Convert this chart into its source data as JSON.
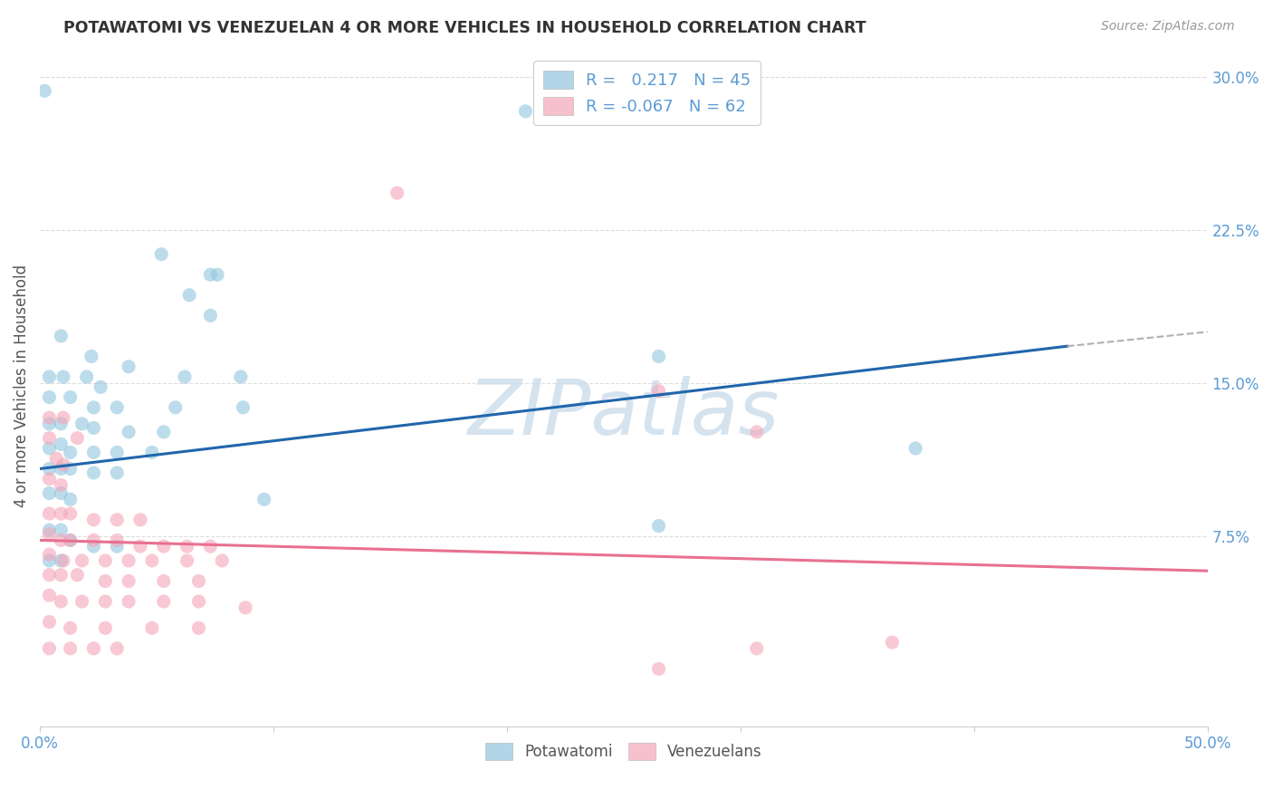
{
  "title": "POTAWATOMI VS VENEZUELAN 4 OR MORE VEHICLES IN HOUSEHOLD CORRELATION CHART",
  "source": "Source: ZipAtlas.com",
  "ylabel": "4 or more Vehicles in Household",
  "watermark": "ZIPatlas",
  "xlim": [
    0.0,
    0.5
  ],
  "ylim": [
    -0.018,
    0.315
  ],
  "xtick_positions": [
    0.0,
    0.5
  ],
  "xtick_labels": [
    "0.0%",
    "50.0%"
  ],
  "yticks_right": [
    0.075,
    0.15,
    0.225,
    0.3
  ],
  "ytick_labels_right": [
    "7.5%",
    "15.0%",
    "22.5%",
    "30.0%"
  ],
  "blue_line": {
    "x0": 0.0,
    "y0": 0.108,
    "x1": 0.44,
    "y1": 0.168
  },
  "blue_dashed_line": {
    "x0": 0.44,
    "y0": 0.168,
    "x1": 0.5,
    "y1": 0.175
  },
  "pink_line": {
    "x0": 0.0,
    "y0": 0.073,
    "x1": 0.5,
    "y1": 0.058
  },
  "potawatomi_points": [
    [
      0.002,
      0.293
    ],
    [
      0.208,
      0.283
    ],
    [
      0.052,
      0.213
    ],
    [
      0.073,
      0.203
    ],
    [
      0.076,
      0.203
    ],
    [
      0.064,
      0.193
    ],
    [
      0.073,
      0.183
    ],
    [
      0.009,
      0.173
    ],
    [
      0.022,
      0.163
    ],
    [
      0.038,
      0.158
    ],
    [
      0.004,
      0.153
    ],
    [
      0.01,
      0.153
    ],
    [
      0.02,
      0.153
    ],
    [
      0.026,
      0.148
    ],
    [
      0.062,
      0.153
    ],
    [
      0.086,
      0.153
    ],
    [
      0.004,
      0.143
    ],
    [
      0.013,
      0.143
    ],
    [
      0.023,
      0.138
    ],
    [
      0.033,
      0.138
    ],
    [
      0.058,
      0.138
    ],
    [
      0.087,
      0.138
    ],
    [
      0.004,
      0.13
    ],
    [
      0.009,
      0.13
    ],
    [
      0.018,
      0.13
    ],
    [
      0.023,
      0.128
    ],
    [
      0.038,
      0.126
    ],
    [
      0.053,
      0.126
    ],
    [
      0.004,
      0.118
    ],
    [
      0.009,
      0.12
    ],
    [
      0.013,
      0.116
    ],
    [
      0.023,
      0.116
    ],
    [
      0.033,
      0.116
    ],
    [
      0.048,
      0.116
    ],
    [
      0.004,
      0.108
    ],
    [
      0.009,
      0.108
    ],
    [
      0.013,
      0.108
    ],
    [
      0.023,
      0.106
    ],
    [
      0.033,
      0.106
    ],
    [
      0.004,
      0.096
    ],
    [
      0.009,
      0.096
    ],
    [
      0.013,
      0.093
    ],
    [
      0.096,
      0.093
    ],
    [
      0.265,
      0.163
    ],
    [
      0.375,
      0.118
    ],
    [
      0.265,
      0.08
    ],
    [
      0.004,
      0.078
    ],
    [
      0.009,
      0.078
    ],
    [
      0.013,
      0.073
    ],
    [
      0.023,
      0.07
    ],
    [
      0.033,
      0.07
    ],
    [
      0.004,
      0.063
    ],
    [
      0.009,
      0.063
    ]
  ],
  "venezuelan_points": [
    [
      0.153,
      0.243
    ],
    [
      0.004,
      0.133
    ],
    [
      0.01,
      0.133
    ],
    [
      0.004,
      0.123
    ],
    [
      0.016,
      0.123
    ],
    [
      0.007,
      0.113
    ],
    [
      0.01,
      0.11
    ],
    [
      0.004,
      0.103
    ],
    [
      0.009,
      0.1
    ],
    [
      0.265,
      0.146
    ],
    [
      0.307,
      0.126
    ],
    [
      0.004,
      0.086
    ],
    [
      0.009,
      0.086
    ],
    [
      0.013,
      0.086
    ],
    [
      0.023,
      0.083
    ],
    [
      0.033,
      0.083
    ],
    [
      0.043,
      0.083
    ],
    [
      0.004,
      0.076
    ],
    [
      0.009,
      0.073
    ],
    [
      0.013,
      0.073
    ],
    [
      0.023,
      0.073
    ],
    [
      0.033,
      0.073
    ],
    [
      0.043,
      0.07
    ],
    [
      0.053,
      0.07
    ],
    [
      0.063,
      0.07
    ],
    [
      0.073,
      0.07
    ],
    [
      0.004,
      0.066
    ],
    [
      0.01,
      0.063
    ],
    [
      0.018,
      0.063
    ],
    [
      0.028,
      0.063
    ],
    [
      0.038,
      0.063
    ],
    [
      0.048,
      0.063
    ],
    [
      0.063,
      0.063
    ],
    [
      0.078,
      0.063
    ],
    [
      0.004,
      0.056
    ],
    [
      0.009,
      0.056
    ],
    [
      0.016,
      0.056
    ],
    [
      0.028,
      0.053
    ],
    [
      0.038,
      0.053
    ],
    [
      0.053,
      0.053
    ],
    [
      0.068,
      0.053
    ],
    [
      0.004,
      0.046
    ],
    [
      0.009,
      0.043
    ],
    [
      0.018,
      0.043
    ],
    [
      0.028,
      0.043
    ],
    [
      0.038,
      0.043
    ],
    [
      0.053,
      0.043
    ],
    [
      0.068,
      0.043
    ],
    [
      0.088,
      0.04
    ],
    [
      0.004,
      0.033
    ],
    [
      0.013,
      0.03
    ],
    [
      0.028,
      0.03
    ],
    [
      0.048,
      0.03
    ],
    [
      0.068,
      0.03
    ],
    [
      0.004,
      0.02
    ],
    [
      0.013,
      0.02
    ],
    [
      0.023,
      0.02
    ],
    [
      0.033,
      0.02
    ],
    [
      0.307,
      0.02
    ],
    [
      0.265,
      0.01
    ],
    [
      0.365,
      0.023
    ]
  ],
  "blue_color": "#92c5de",
  "pink_color": "#f4a6b8",
  "blue_line_color": "#2166ac",
  "pink_line_color": "#e87090",
  "blue_dashed_color": "#b0b0b0",
  "watermark_color": "#c8daea",
  "background_color": "#ffffff",
  "grid_color": "#dddddd",
  "title_color": "#333333",
  "right_tick_color": "#5b9bd5",
  "source_color": "#999999",
  "axis_label_color": "#555555",
  "bottom_xtick_color": "#5b9bd5"
}
